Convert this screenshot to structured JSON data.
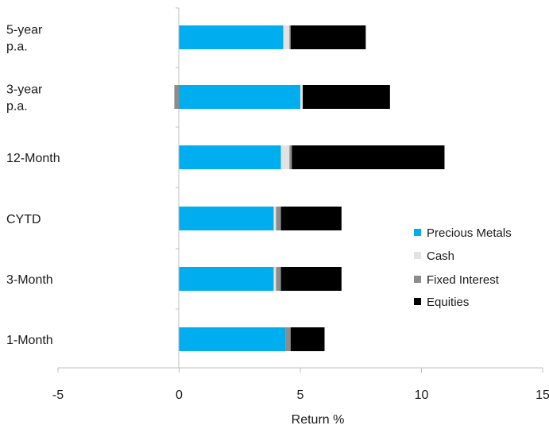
{
  "chart_data": {
    "type": "bar",
    "orientation": "horizontal",
    "stacked": true,
    "categories": [
      "5-year p.a.",
      "3-year p.a.",
      "12-Month",
      "CYTD",
      "3-Month",
      "1-Month"
    ],
    "category_lines": [
      [
        "5-year",
        "p.a."
      ],
      [
        "3-year",
        "p.a."
      ],
      [
        "12-Month"
      ],
      [
        "CYTD"
      ],
      [
        "3-Month"
      ],
      [
        "1-Month"
      ]
    ],
    "series": [
      {
        "name": "Precious Metals",
        "color": "#00aeef",
        "values": [
          4.3,
          5.0,
          4.2,
          3.9,
          3.9,
          4.4
        ]
      },
      {
        "name": "Cash",
        "color": "#e2e2e2",
        "values": [
          0.25,
          0.1,
          0.35,
          0.1,
          0.1,
          0.0
        ]
      },
      {
        "name": "Fixed Interest",
        "color": "#8c8c8c",
        "values": [
          0.05,
          -0.2,
          0.1,
          0.2,
          0.2,
          0.2
        ]
      },
      {
        "name": "Equities",
        "color": "#000000",
        "values": [
          3.1,
          3.6,
          6.3,
          2.5,
          2.5,
          1.4
        ]
      }
    ],
    "xlabel": "Return %",
    "ylabel": "",
    "xlim": [
      -5,
      15
    ],
    "xticks": [
      -5,
      0,
      5,
      10,
      15
    ],
    "grid": false,
    "legend_position": "right"
  }
}
